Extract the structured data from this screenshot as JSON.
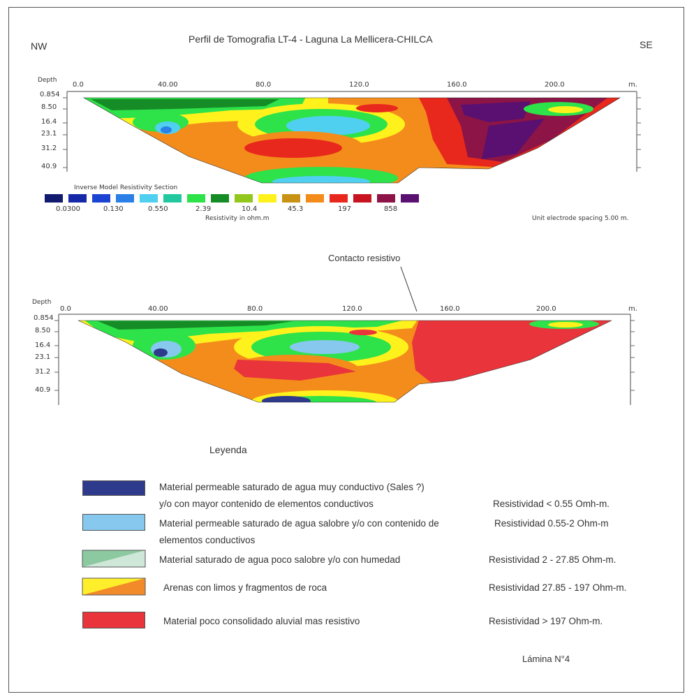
{
  "title": "Perfil de Tomografia LT-4 - Laguna La Mellicera-CHILCA",
  "direction_left": "NW",
  "direction_right": "SE",
  "section_top": {
    "depth_label": "Depth",
    "x_ticks": [
      "0.0",
      "40.00",
      "80.0",
      "120.0",
      "160.0",
      "200.0"
    ],
    "x_unit": "m.",
    "depth_ticks": [
      "0.854",
      "8.50",
      "16.4",
      "23.1",
      "31.2",
      "40.9"
    ],
    "scale_title": "Inverse Model Resistivity Section",
    "scale_labels": [
      "0.0300",
      "0.130",
      "0.550",
      "2.39",
      "10.4",
      "45.3",
      "197",
      "858"
    ],
    "scale_unit": "Resistivity in ohm.m",
    "spacing_note": "Unit electrode spacing 5.00 m.",
    "scale_colors": [
      "#101a6e",
      "#1428a8",
      "#1c44d2",
      "#2a80e6",
      "#4fd0f0",
      "#22c8a0",
      "#2ee24a",
      "#168c26",
      "#92c81e",
      "#fff21c",
      "#c89214",
      "#f48c1c",
      "#e8281c",
      "#c81420",
      "#8c1446",
      "#5a1070"
    ]
  },
  "section_bottom": {
    "depth_label": "Depth",
    "x_ticks": [
      "0.0",
      "40.00",
      "80.0",
      "120.0",
      "160.0",
      "200.0"
    ],
    "x_unit": "m.",
    "depth_ticks": [
      "0.854",
      "8.50",
      "16.4",
      "23.1",
      "31.2",
      "40.9"
    ],
    "annotation": "Contacto resistivo"
  },
  "legend": {
    "title": "Leyenda",
    "items": [
      {
        "line1": "Material  permeable saturado de agua muy conductivo (Sales ?)",
        "line2": "y/o con mayor contenido de elementos conductivos",
        "resistivity": "Resistividad < 0.55 Omh-m.",
        "color": "#2e3a8c"
      },
      {
        "line1": "Material  permeable saturado de agua salobre y/o con contenido de",
        "line2": "elementos  conductivos",
        "resistivity": "Resistividad 0.55-2 Ohm-m",
        "color": "#86c8ee"
      },
      {
        "line1": "Material saturado de agua poco salobre y/o con  humedad",
        "line2": "",
        "resistivity": "Resistividad  2 - 27.85 Ohm-m.",
        "color_a": "#8cc8a0",
        "color_b": "#cfe7d8"
      },
      {
        "line1": "Arenas con limos y fragmentos de roca",
        "line2": "",
        "resistivity": "Resistividad 27.85 - 197 Ohm-m.",
        "color_a": "#ffef2a",
        "color_b": "#f28a2a"
      },
      {
        "line1": "Material  poco consolidado  aluvial  mas resistivo",
        "line2": "",
        "resistivity": "Resistividad  > 197 Ohm-m.",
        "color": "#e8343a"
      }
    ]
  },
  "sheet_label": "Lámina N°4"
}
